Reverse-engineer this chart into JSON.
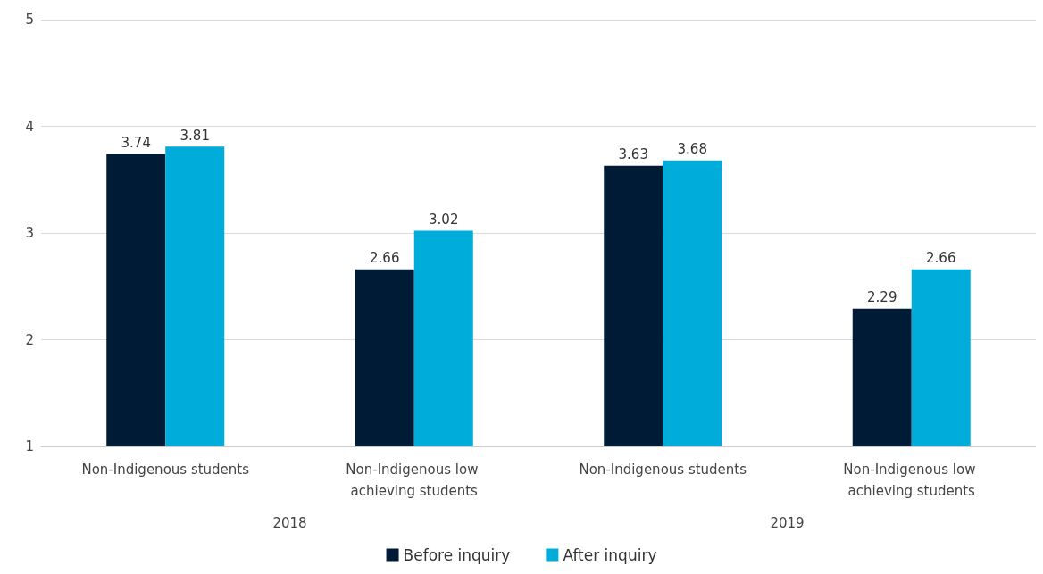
{
  "chart_data": {
    "type": "bar",
    "categories": [
      "Non-Indigenous students",
      "Non-Indigenous low achieving students",
      "Non-Indigenous students",
      "Non-Indigenous low achieving students"
    ],
    "series": [
      {
        "name": "Before inquiry",
        "color": "#001b36",
        "values": [
          3.74,
          2.66,
          3.63,
          2.29
        ]
      },
      {
        "name": "After inquiry",
        "color": "#00acd9",
        "values": [
          3.81,
          3.02,
          3.68,
          2.66
        ]
      }
    ],
    "ylim": [
      1,
      5
    ],
    "yticks": [
      1,
      2,
      3,
      4,
      5
    ],
    "grid": "y",
    "legend": "bottom",
    "data_labels": true,
    "annotations": [
      "2018",
      "2019"
    ]
  }
}
